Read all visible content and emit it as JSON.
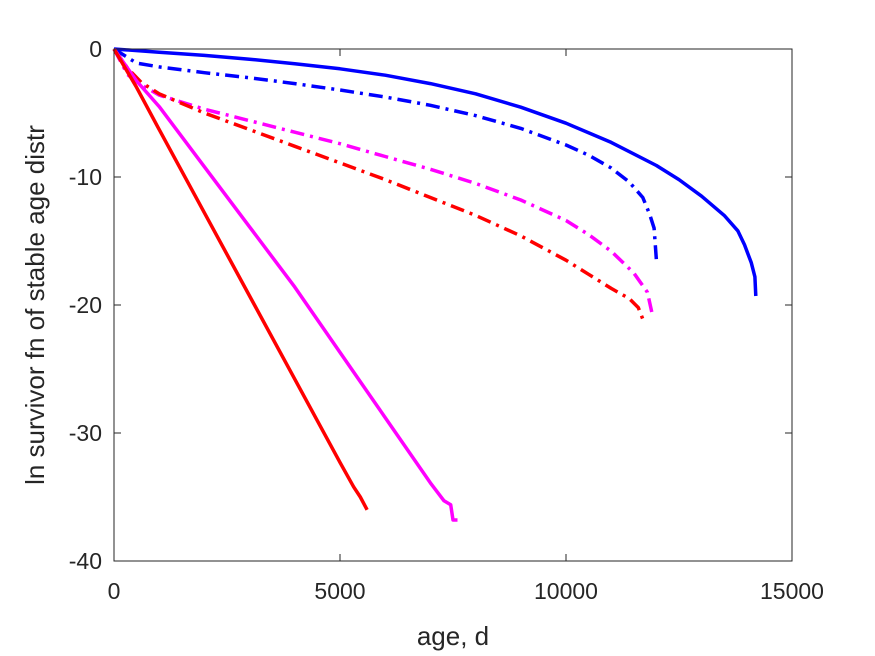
{
  "chart_data": {
    "type": "line",
    "title": "",
    "xlabel": "age, d",
    "ylabel": "ln survivor fn of stable age distr",
    "xlim": [
      0,
      15000
    ],
    "ylim": [
      -40,
      0
    ],
    "xticks": [
      0,
      5000,
      10000,
      15000
    ],
    "xtick_labels": [
      "0",
      "5000",
      "10000",
      "15000"
    ],
    "yticks": [
      -40,
      -30,
      -20,
      -10,
      0
    ],
    "ytick_labels": [
      "-40",
      "-30",
      "-20",
      "-10",
      "0"
    ],
    "grid": false,
    "legend": "none",
    "series": [
      {
        "color": "#0000ff",
        "style": "solid",
        "x": [
          0,
          1000,
          2000,
          3000,
          4000,
          5000,
          6000,
          7000,
          8000,
          9000,
          10000,
          11000,
          12000,
          12500,
          13000,
          13500,
          13800,
          13950,
          14100,
          14180,
          14200
        ],
        "y": [
          0,
          -0.25,
          -0.5,
          -0.8,
          -1.15,
          -1.55,
          -2.05,
          -2.7,
          -3.5,
          -4.55,
          -5.8,
          -7.3,
          -9.1,
          -10.2,
          -11.5,
          -13.0,
          -14.2,
          -15.3,
          -16.7,
          -17.8,
          -19.3
        ]
      },
      {
        "color": "#0000ff",
        "style": "dashdot",
        "x": [
          0,
          500,
          1000,
          2000,
          3000,
          4000,
          5000,
          6000,
          7000,
          8000,
          9000,
          10000,
          10500,
          11000,
          11400,
          11700,
          11850,
          11950,
          12000
        ],
        "y": [
          0,
          -1.1,
          -1.4,
          -1.85,
          -2.25,
          -2.7,
          -3.2,
          -3.75,
          -4.4,
          -5.2,
          -6.2,
          -7.5,
          -8.3,
          -9.3,
          -10.4,
          -11.6,
          -12.9,
          -14.0,
          -16.5
        ]
      },
      {
        "color": "#ff00ff",
        "style": "dashdot",
        "x": [
          0,
          300,
          600,
          1000,
          2000,
          3000,
          4000,
          5000,
          6000,
          7000,
          8000,
          9000,
          10000,
          10500,
          11000,
          11500,
          11800,
          11900
        ],
        "y": [
          0,
          -2.0,
          -2.8,
          -3.6,
          -4.7,
          -5.6,
          -6.5,
          -7.4,
          -8.4,
          -9.4,
          -10.5,
          -11.8,
          -13.4,
          -14.5,
          -15.8,
          -17.5,
          -19.0,
          -20.6
        ]
      },
      {
        "color": "#ff0000",
        "style": "dashdot",
        "x": [
          0,
          300,
          600,
          1000,
          2000,
          3000,
          4000,
          5000,
          6000,
          7000,
          8000,
          9000,
          10000,
          10500,
          11000,
          11400,
          11600,
          11700
        ],
        "y": [
          0,
          -1.5,
          -2.6,
          -3.5,
          -5.0,
          -6.3,
          -7.6,
          -8.9,
          -10.2,
          -11.6,
          -13.0,
          -14.6,
          -16.5,
          -17.6,
          -18.7,
          -19.5,
          -20.2,
          -21.1
        ]
      },
      {
        "color": "#ff00ff",
        "style": "solid",
        "x": [
          0,
          500,
          1000,
          2000,
          3000,
          4000,
          5000,
          6000,
          7000,
          7300,
          7450,
          7500,
          7550,
          7600
        ],
        "y": [
          0,
          -2.5,
          -4.5,
          -9.2,
          -13.9,
          -18.6,
          -23.7,
          -28.8,
          -33.9,
          -35.3,
          -35.6,
          -36.8,
          -36.8,
          -36.8
        ]
      },
      {
        "color": "#ff0000",
        "style": "solid",
        "x": [
          0,
          500,
          1000,
          2000,
          3000,
          4000,
          5000,
          5300,
          5450,
          5600
        ],
        "y": [
          0,
          -3.0,
          -6.3,
          -12.8,
          -19.3,
          -25.8,
          -32.3,
          -34.2,
          -35.0,
          -36.0
        ]
      }
    ]
  }
}
